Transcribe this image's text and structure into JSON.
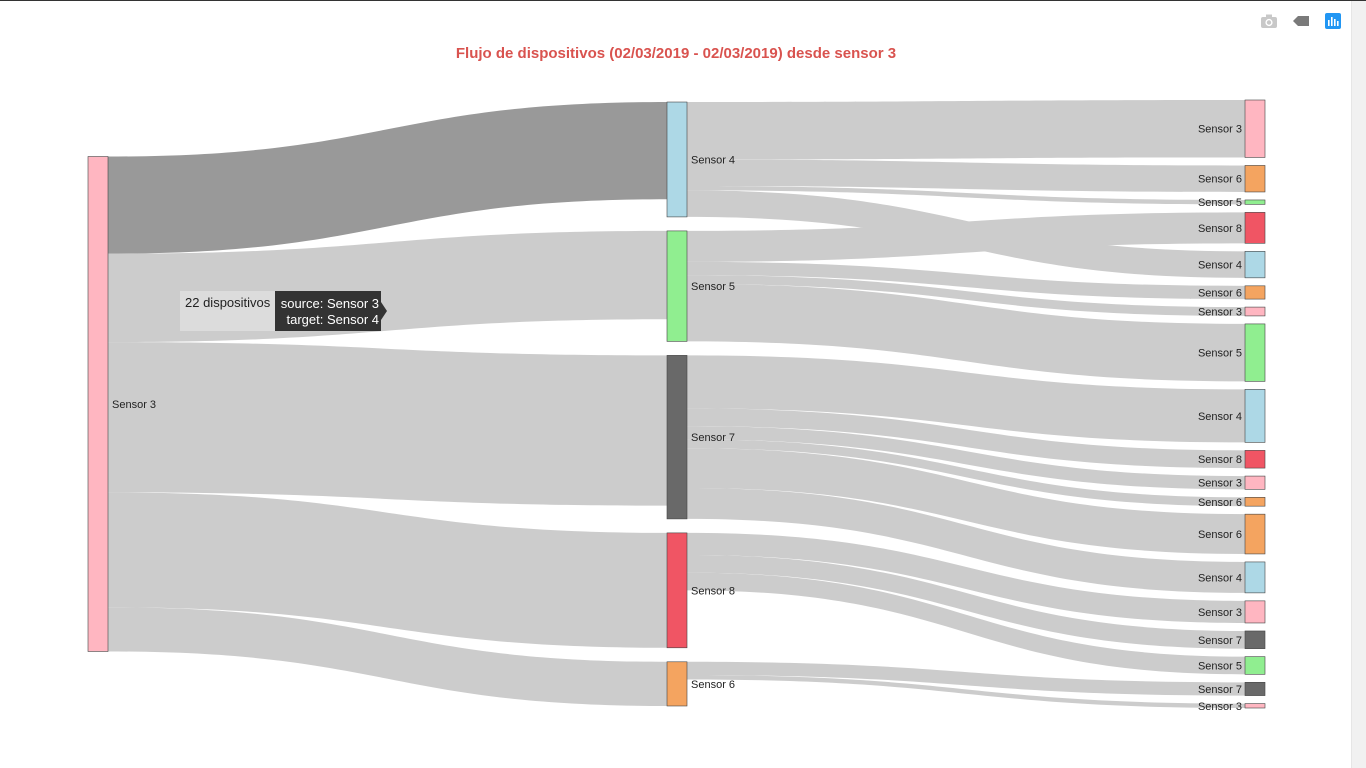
{
  "chart_data": {
    "type": "sankey",
    "title": "Flujo de dispositivos (02/03/2019 - 02/03/2019) desde sensor 3",
    "colors": {
      "Sensor 3": "#ffb6c1",
      "Sensor 4": "#add8e6",
      "Sensor 5": "#90ee90",
      "Sensor 6": "#f4a460",
      "Sensor 7": "#696969",
      "Sensor 8": "#f05564"
    },
    "nodes": [
      {
        "label": "Sensor 3",
        "column": 0
      },
      {
        "label": "Sensor 4",
        "column": 1
      },
      {
        "label": "Sensor 5",
        "column": 1
      },
      {
        "label": "Sensor 7",
        "column": 1
      },
      {
        "label": "Sensor 8",
        "column": 1
      },
      {
        "label": "Sensor 6",
        "column": 1
      },
      {
        "label": "Sensor 3",
        "column": 2
      },
      {
        "label": "Sensor 6",
        "column": 2
      },
      {
        "label": "Sensor 5",
        "column": 2
      },
      {
        "label": "Sensor 8",
        "column": 2
      },
      {
        "label": "Sensor 4",
        "column": 2
      },
      {
        "label": "Sensor 6",
        "column": 2
      },
      {
        "label": "Sensor 3",
        "column": 2
      },
      {
        "label": "Sensor 5",
        "column": 2
      },
      {
        "label": "Sensor 4",
        "column": 2
      },
      {
        "label": "Sensor 8",
        "column": 2
      },
      {
        "label": "Sensor 3",
        "column": 2
      },
      {
        "label": "Sensor 6",
        "column": 2
      },
      {
        "label": "Sensor 6",
        "column": 2
      },
      {
        "label": "Sensor 4",
        "column": 2
      },
      {
        "label": "Sensor 3",
        "column": 2
      },
      {
        "label": "Sensor 7",
        "column": 2
      },
      {
        "label": "Sensor 5",
        "column": 2
      },
      {
        "label": "Sensor 7",
        "column": 2
      },
      {
        "label": "Sensor 3",
        "column": 2
      }
    ],
    "links": [
      {
        "source": 0,
        "target": 1,
        "value": 22
      },
      {
        "source": 0,
        "target": 2,
        "value": 20
      },
      {
        "source": 0,
        "target": 3,
        "value": 34
      },
      {
        "source": 0,
        "target": 4,
        "value": 26
      },
      {
        "source": 0,
        "target": 5,
        "value": 10
      },
      {
        "source": 1,
        "target": 6,
        "value": 13
      },
      {
        "source": 1,
        "target": 7,
        "value": 6
      },
      {
        "source": 1,
        "target": 8,
        "value": 1
      },
      {
        "source": 2,
        "target": 9,
        "value": 7
      },
      {
        "source": 1,
        "target": 10,
        "value": 6
      },
      {
        "source": 2,
        "target": 11,
        "value": 3
      },
      {
        "source": 2,
        "target": 12,
        "value": 2
      },
      {
        "source": 2,
        "target": 13,
        "value": 13
      },
      {
        "source": 3,
        "target": 14,
        "value": 12
      },
      {
        "source": 3,
        "target": 15,
        "value": 4
      },
      {
        "source": 3,
        "target": 16,
        "value": 3
      },
      {
        "source": 3,
        "target": 17,
        "value": 2
      },
      {
        "source": 3,
        "target": 18,
        "value": 9
      },
      {
        "source": 3,
        "target": 19,
        "value": 7
      },
      {
        "source": 4,
        "target": 20,
        "value": 5
      },
      {
        "source": 4,
        "target": 21,
        "value": 4
      },
      {
        "source": 4,
        "target": 22,
        "value": 4
      },
      {
        "source": 5,
        "target": 23,
        "value": 3
      },
      {
        "source": 5,
        "target": 24,
        "value": 1
      }
    ],
    "hover": {
      "link": 0,
      "value_text": "22 dispositivos",
      "source_text": "source: Sensor 3",
      "target_text": "target: Sensor 4"
    }
  },
  "modebar": {
    "icons": [
      "camera-icon",
      "tag-icon",
      "plotly-logo-icon"
    ]
  }
}
